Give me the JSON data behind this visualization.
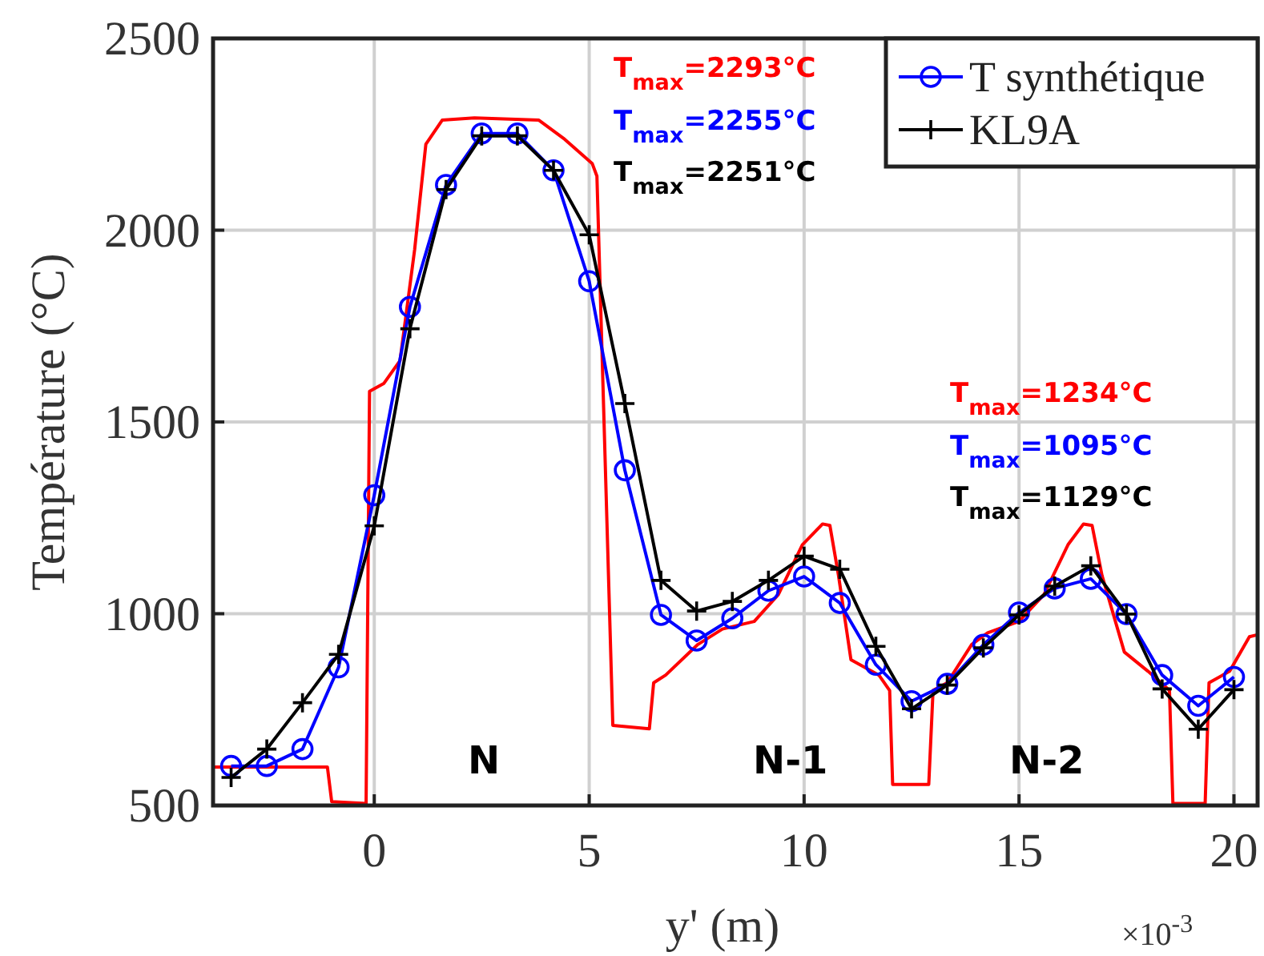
{
  "chart_data": {
    "type": "line",
    "xlabel": "y' (m)",
    "ylabel": "Température (°C)",
    "xlim": [
      -3.75,
      20.55
    ],
    "ylim": [
      500,
      2500
    ],
    "xticks": [
      0,
      5,
      10,
      15,
      20
    ],
    "yticks": [
      500,
      1000,
      1500,
      2000,
      2500
    ],
    "grid": true,
    "legend": "top right",
    "series": [
      {
        "color": "#ff0000",
        "marker": "none",
        "x": [
          -3.75,
          -1.09,
          -0.99,
          -0.19,
          -0.11,
          0.22,
          0.6,
          0.94,
          1.2,
          1.58,
          2.33,
          3.83,
          4.43,
          5.07,
          5.18,
          5.55,
          6.4,
          6.5,
          6.78,
          7.53,
          8.1,
          8.84,
          9.4,
          9.96,
          10.43,
          10.6,
          10.8,
          11.09,
          11.74,
          11.99,
          12.06,
          12.9,
          13.0,
          13.33,
          13.9,
          14.27,
          15.0,
          15.58,
          16.14,
          16.5,
          16.7,
          16.93,
          17.45,
          18.0,
          18.5,
          18.58,
          19.33,
          19.42,
          19.9,
          20.36,
          20.54
        ],
        "values": [
          600,
          600,
          510,
          505,
          1580,
          1600,
          1660,
          1950,
          2224,
          2287,
          2293,
          2287,
          2237,
          2174,
          2141,
          709,
          700,
          820,
          840,
          920,
          960,
          980,
          1050,
          1180,
          1234,
          1230,
          1100,
          880,
          840,
          800,
          555,
          555,
          800,
          820,
          920,
          950,
          980,
          1050,
          1180,
          1234,
          1230,
          1100,
          900,
          850,
          800,
          505,
          505,
          820,
          850,
          940,
          945
        ]
      },
      {
        "name": "T synthétique",
        "color": "#0000ff",
        "marker": "circle",
        "x": [
          -3.33,
          -2.5,
          -1.67,
          -0.83,
          0,
          0.83,
          1.67,
          2.5,
          3.33,
          4.17,
          5,
          5.83,
          6.67,
          7.5,
          8.33,
          9.17,
          10,
          10.83,
          11.67,
          12.5,
          13.33,
          14.17,
          15,
          15.83,
          16.67,
          17.5,
          18.33,
          19.17,
          20
        ],
        "values": [
          603,
          603,
          647,
          860,
          1309,
          1800,
          2118,
          2252,
          2252,
          2156,
          1867,
          1374,
          997,
          930,
          988,
          1060,
          1097,
          1028,
          867,
          772,
          817,
          919,
          1003,
          1066,
          1091,
          999,
          840,
          760,
          835
        ]
      },
      {
        "name": "KL9A",
        "color": "#000000",
        "marker": "cross",
        "x": [
          -3.33,
          -2.5,
          -1.67,
          -0.83,
          0,
          0.83,
          1.67,
          2.5,
          3.33,
          4.17,
          5,
          5.83,
          6.67,
          7.5,
          8.33,
          9.17,
          10,
          10.83,
          11.67,
          12.5,
          13.33,
          14.17,
          15,
          15.83,
          16.67,
          17.5,
          18.33,
          19.17,
          20
        ],
        "values": [
          573,
          647,
          768,
          894,
          1229,
          1743,
          2106,
          2246,
          2246,
          2156,
          1988,
          1548,
          1087,
          1007,
          1032,
          1087,
          1150,
          1116,
          915,
          752,
          814,
          911,
          997,
          1072,
          1125,
          999,
          804,
          699,
          802
        ]
      }
    ],
    "annotations": [
      "T$_{max}$=2293°C",
      "T$_{max}$=2255°C",
      "T$_{max}$=2251°C",
      "T$_{max}$=1234°C",
      "T$_{max}$=1095°C",
      "T$_{max}$=1129°C",
      "N",
      "N-1",
      "N-2",
      "×10$^{-3}$"
    ]
  }
}
